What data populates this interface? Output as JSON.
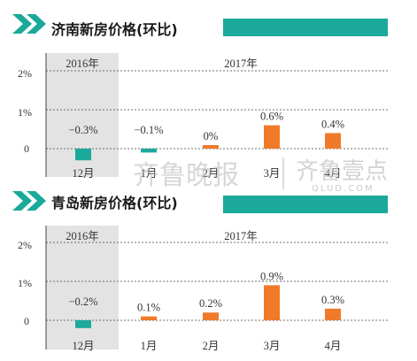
{
  "colors": {
    "teal": "#1aa99a",
    "orange": "#f07a2a",
    "shade": "#e3e3e3",
    "grid": "#444444"
  },
  "watermark": {
    "calligraphy": "齐鲁晚报",
    "brand": "齐鲁壹点",
    "url": "QLUD.COM"
  },
  "chart_data": [
    {
      "type": "bar",
      "title": "济南新房价格(环比)",
      "group_labels": [
        "2016年",
        "2017年"
      ],
      "categories": [
        "12月",
        "1月",
        "2月",
        "3月",
        "4月"
      ],
      "values": [
        -0.3,
        -0.1,
        0,
        0.6,
        0.4
      ],
      "value_labels": [
        "−0.3%",
        "−0.1%",
        "0%",
        "0.6%",
        "0.4%"
      ],
      "y_ticks": [
        "2%",
        "1%",
        "0"
      ],
      "ylim": [
        -0.3,
        2.0
      ],
      "grid": "dashed"
    },
    {
      "type": "bar",
      "title": "青岛新房价格(环比)",
      "group_labels": [
        "2016年",
        "2017年"
      ],
      "categories": [
        "12月",
        "1月",
        "2月",
        "3月",
        "4月"
      ],
      "values": [
        -0.2,
        0.1,
        0.2,
        0.9,
        0.3
      ],
      "value_labels": [
        "−0.2%",
        "0.1%",
        "0.2%",
        "0.9%",
        "0.3%"
      ],
      "y_ticks": [
        "2%",
        "1%",
        "0"
      ],
      "ylim": [
        -0.3,
        2.0
      ],
      "grid": "dashed"
    }
  ]
}
